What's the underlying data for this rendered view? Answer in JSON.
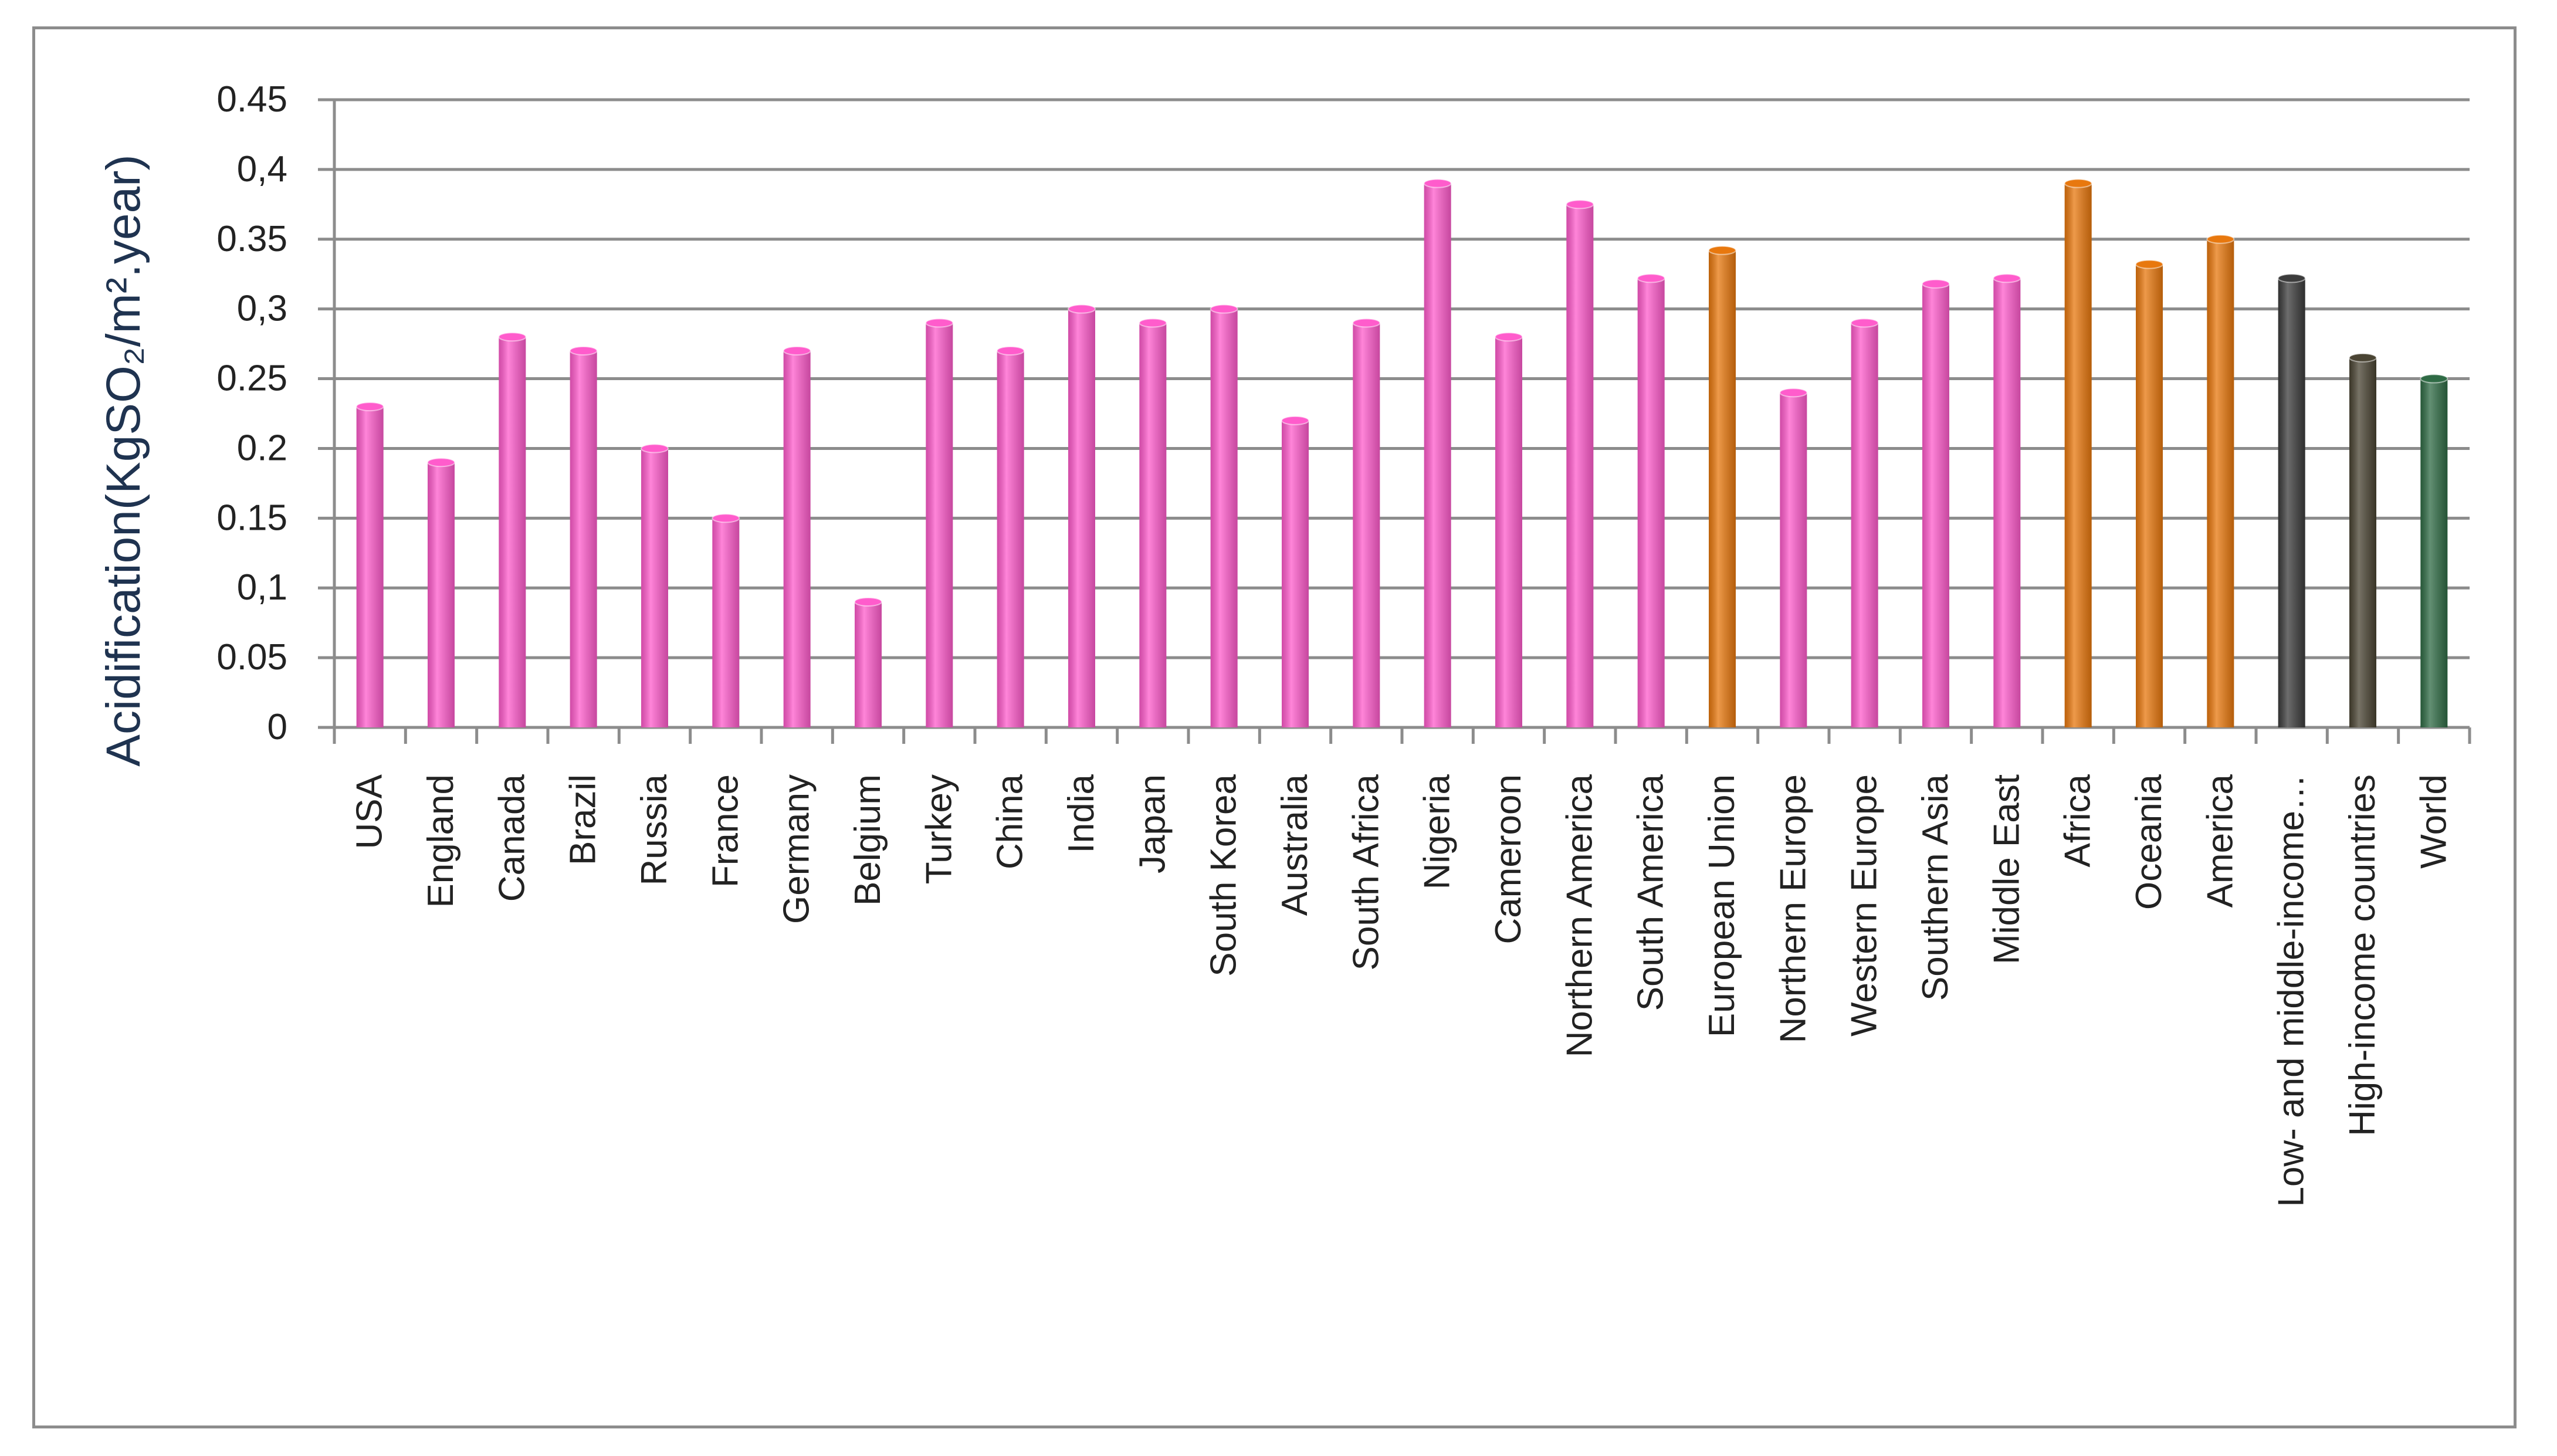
{
  "chart_data": {
    "type": "bar",
    "title": "",
    "xlabel": "",
    "ylabel": "Acidification(KgSO₂/m².year)",
    "ylim": [
      0,
      0.45
    ],
    "yticks": [
      {
        "value": 0,
        "label": "0"
      },
      {
        "value": 0.05,
        "label": "0.05"
      },
      {
        "value": 0.1,
        "label": "0,1"
      },
      {
        "value": 0.15,
        "label": "0.15"
      },
      {
        "value": 0.2,
        "label": "0.2"
      },
      {
        "value": 0.25,
        "label": "0.25"
      },
      {
        "value": 0.3,
        "label": "0,3"
      },
      {
        "value": 0.35,
        "label": "0.35"
      },
      {
        "value": 0.4,
        "label": "0,4"
      },
      {
        "value": 0.45,
        "label": "0.45"
      }
    ],
    "grid": true,
    "legend": "none",
    "categories": [
      "USA",
      "England",
      "Canada",
      "Brazil",
      "Russia",
      "France",
      "Germany",
      "Belgium",
      "Turkey",
      "China",
      "India",
      "Japan",
      "South Korea",
      "Australia",
      "South Africa",
      "Nigeria",
      "Cameroon",
      "Northern America",
      "South America",
      "European Union",
      "Northern Europe",
      "Western Europe",
      "Southern Asia",
      "Middle East",
      "Africa",
      "Oceania",
      "America",
      "Low- and middle-income…",
      "High-income countries",
      "World"
    ],
    "values": [
      0.23,
      0.19,
      0.28,
      0.27,
      0.2,
      0.15,
      0.27,
      0.09,
      0.29,
      0.27,
      0.3,
      0.29,
      0.3,
      0.22,
      0.29,
      0.39,
      0.28,
      0.375,
      0.322,
      0.342,
      0.24,
      0.29,
      0.318,
      0.322,
      0.39,
      0.332,
      0.35,
      0.322,
      0.265,
      0.25
    ],
    "bar_colors": [
      "#ff5ccc",
      "#ff5ccc",
      "#ff5ccc",
      "#ff5ccc",
      "#ff5ccc",
      "#ff5ccc",
      "#ff5ccc",
      "#ff5ccc",
      "#ff5ccc",
      "#ff5ccc",
      "#ff5ccc",
      "#ff5ccc",
      "#ff5ccc",
      "#ff5ccc",
      "#ff5ccc",
      "#ff5ccc",
      "#ff5ccc",
      "#ff5ccc",
      "#ff5ccc",
      "#e8780e",
      "#ff5ccc",
      "#ff5ccc",
      "#ff5ccc",
      "#ff5ccc",
      "#e8780e",
      "#e8780e",
      "#e8780e",
      "#3c3c3c",
      "#4a4433",
      "#2f6b45"
    ],
    "gridline_color": "#8c8c8c",
    "axis_color": "#8c8c8c"
  }
}
